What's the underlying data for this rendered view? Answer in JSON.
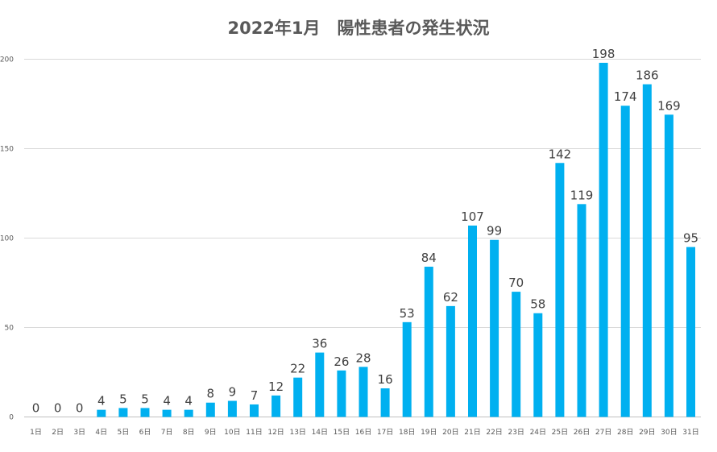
{
  "chart_data": {
    "type": "bar",
    "title": "2022年1月　陽性患者の発生状況",
    "xlabel": "",
    "ylabel": "",
    "ylim": [
      0,
      200
    ],
    "yticks": [
      0,
      50,
      100,
      150,
      200
    ],
    "grid": true,
    "legend": "none",
    "bar_color": "#00B0F0",
    "categories": [
      "1日",
      "2日",
      "3日",
      "4日",
      "5日",
      "6日",
      "7日",
      "8日",
      "9日",
      "10日",
      "11日",
      "12日",
      "13日",
      "14日",
      "15日",
      "16日",
      "17日",
      "18日",
      "19日",
      "20日",
      "21日",
      "22日",
      "23日",
      "24日",
      "25日",
      "26日",
      "27日",
      "28日",
      "29日",
      "30日",
      "31日"
    ],
    "values": [
      0,
      0,
      0,
      4,
      5,
      5,
      4,
      4,
      8,
      9,
      7,
      12,
      22,
      36,
      26,
      28,
      16,
      53,
      84,
      62,
      107,
      99,
      70,
      58,
      142,
      119,
      198,
      174,
      186,
      169,
      95
    ]
  }
}
